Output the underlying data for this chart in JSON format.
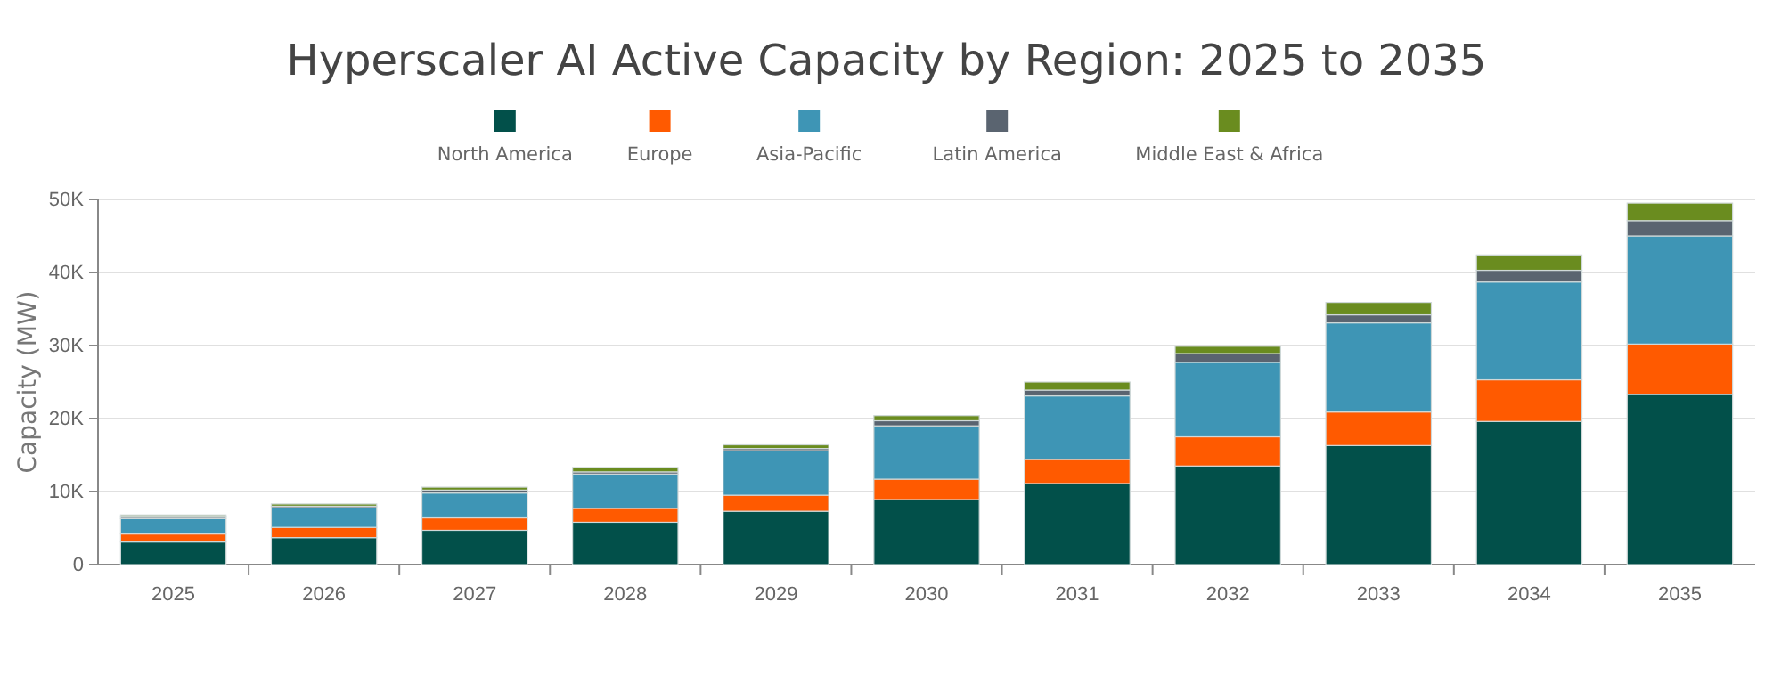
{
  "chart_data": {
    "type": "bar",
    "title": "Hyperscaler AI Active Capacity by Region: 2025 to 2035",
    "ylabel": "Capacity (MW)",
    "categories": [
      "2025",
      "2026",
      "2027",
      "2028",
      "2029",
      "2030",
      "2031",
      "2032",
      "2033",
      "2034",
      "2035"
    ],
    "stacked": true,
    "grid": "y",
    "legend": "top",
    "ylim": [
      0,
      50000
    ],
    "yticks": [
      0,
      {
        "value": 10000,
        "label": "10K"
      },
      {
        "value": 20000,
        "label": "20K"
      },
      {
        "value": 30000,
        "label": "30K"
      },
      {
        "value": 40000,
        "label": "40K"
      },
      {
        "value": 50000,
        "label": "50K"
      }
    ],
    "series": [
      {
        "name": "North America",
        "color": "#02504a",
        "values": [
          3100,
          3700,
          4700,
          5800,
          7300,
          8900,
          11100,
          13500,
          16300,
          19600,
          23300
        ]
      },
      {
        "name": "Europe",
        "color": "#ff5a00",
        "values": [
          1100,
          1400,
          1700,
          1900,
          2200,
          2800,
          3300,
          4000,
          4600,
          5700,
          6900
        ]
      },
      {
        "name": "Asia-Pacific",
        "color": "#3e95b5",
        "values": [
          2100,
          2700,
          3400,
          4700,
          6100,
          7300,
          8700,
          10200,
          12200,
          13400,
          14800
        ]
      },
      {
        "name": "Latin America",
        "color": "#5a6470",
        "values": [
          200,
          200,
          400,
          300,
          300,
          700,
          800,
          1200,
          1100,
          1600,
          2100
        ]
      },
      {
        "name": "Middle East & Africa",
        "color": "#6a8c1f",
        "values": [
          300,
          300,
          400,
          600,
          500,
          700,
          1100,
          1000,
          1700,
          2100,
          2400
        ]
      }
    ]
  }
}
